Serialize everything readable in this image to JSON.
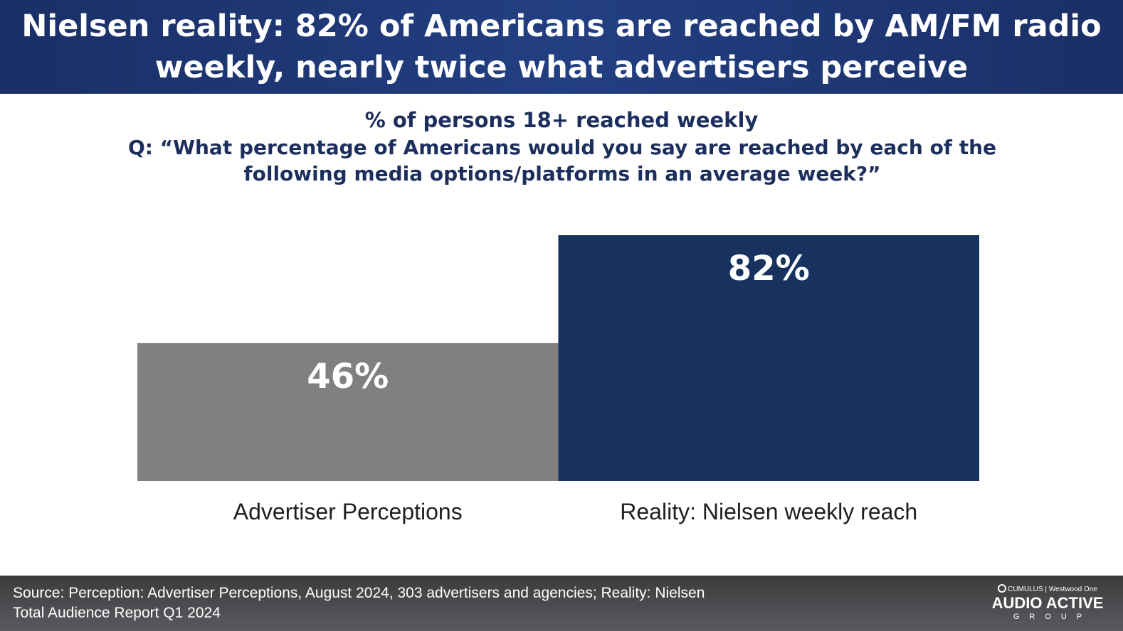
{
  "header": {
    "title_line1": "Nielsen reality: 82% of Americans are reached by AM/FM radio",
    "title_line2": "weekly, nearly twice what advertisers perceive"
  },
  "chart_data": {
    "type": "bar",
    "title": "% of persons 18+ reached weekly",
    "subtitle_line1": "Q: “What percentage of Americans would you say are reached by each of the",
    "subtitle_line2": "following media options/platforms in an average week?”",
    "categories": [
      "Advertiser Perceptions",
      "Reality: Nielsen weekly reach"
    ],
    "values": [
      46,
      82
    ],
    "data_labels": [
      "46%",
      "82%"
    ],
    "colors": [
      "#808080",
      "#17325f"
    ],
    "xlabel": "",
    "ylabel": "",
    "ylim": [
      0,
      82
    ],
    "grid": false,
    "legend": "none"
  },
  "footer": {
    "source_line1": "Source: Perception: Advertiser Perceptions, August 2024, 303 advertisers and agencies; Reality: Nielsen",
    "source_line2": "Total Audience Report Q1 2024",
    "logo_top_left": "CUMULUS",
    "logo_top_right": "Westwood One",
    "logo_main": "AUDIO ACTIVE",
    "logo_sub": "GROUP"
  }
}
